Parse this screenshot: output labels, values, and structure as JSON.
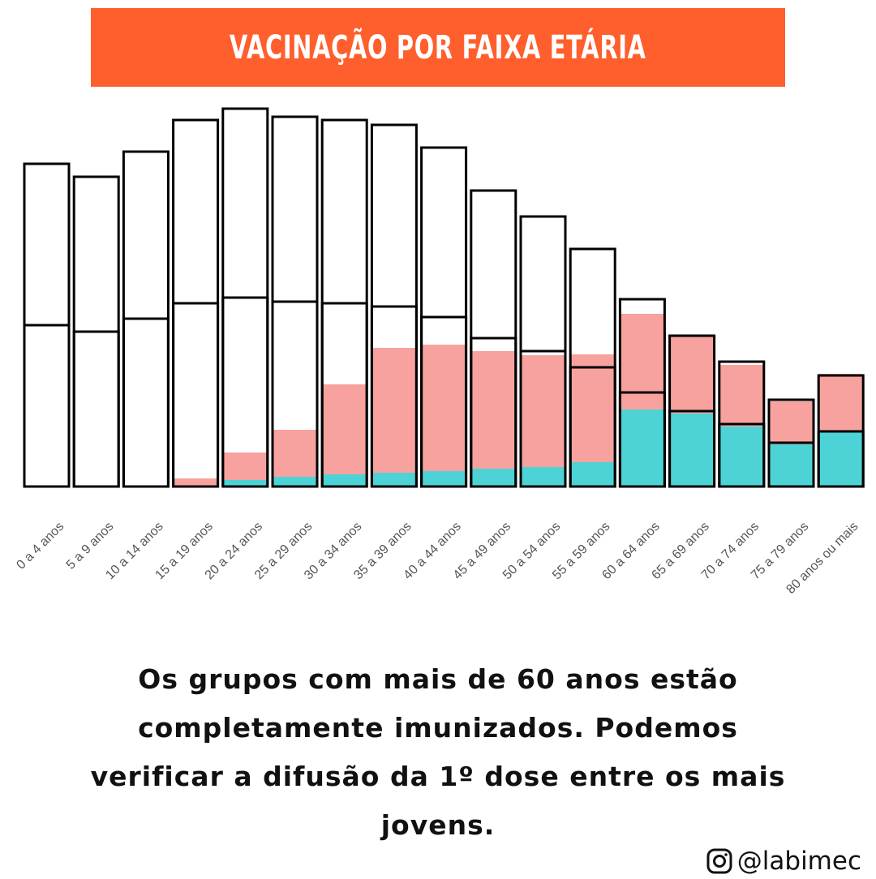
{
  "header": {
    "title": "VACINAÇÃO POR FAIXA ETÁRIA"
  },
  "chart_data": {
    "type": "bar",
    "title": "VACINAÇÃO POR FAIXA ETÁRIA",
    "categories": [
      "0 a 4 anos",
      "5 a 9 anos",
      "10 a 14 anos",
      "15 a 19 anos",
      "20 a 24 anos",
      "25 a 29 anos",
      "30 a 34 anos",
      "35 a 39 anos",
      "40 a 44 anos",
      "45 a 49 anos",
      "50 a 54 anos",
      "55 a 59 anos",
      "60 a 64 anos",
      "65 a 69 anos",
      "70 a 74 anos",
      "75 a 79 anos",
      "80 anos ou mais"
    ],
    "series": [
      {
        "values": [
          398,
          382,
          413,
          452,
          466,
          456,
          452,
          446,
          418,
          365,
          333,
          293,
          231,
          186,
          154,
          107,
          137
        ]
      },
      {
        "values": [
          199,
          191,
          207,
          226,
          233,
          228,
          226,
          222,
          209,
          183,
          167,
          147,
          116,
          93,
          77,
          54,
          68
        ]
      },
      {
        "values": [
          0,
          0,
          0,
          10,
          42,
          70,
          126,
          171,
          175,
          167,
          162,
          163,
          213,
          186,
          150,
          105,
          139
        ]
      },
      {
        "values": [
          0,
          0,
          0,
          0,
          8,
          12,
          15,
          17,
          19,
          22,
          24,
          30,
          95,
          90,
          74,
          52,
          67
        ]
      }
    ],
    "colors": {
      "primeira_dose": "#f7a29e",
      "completa": "#4dd3d5",
      "outline": "#000000"
    }
  },
  "caption": {
    "line1": "Os grupos com mais de 60 anos estão",
    "line2": "completamente imunizados. Podemos",
    "line3": "verificar a difusão da 1º dose entre os mais",
    "line4": "jovens."
  },
  "footer": {
    "handle": "@labimec",
    "icon": "instagram-icon"
  },
  "colors": {
    "title_bar": "#ff5f2c",
    "text": "#111111"
  }
}
